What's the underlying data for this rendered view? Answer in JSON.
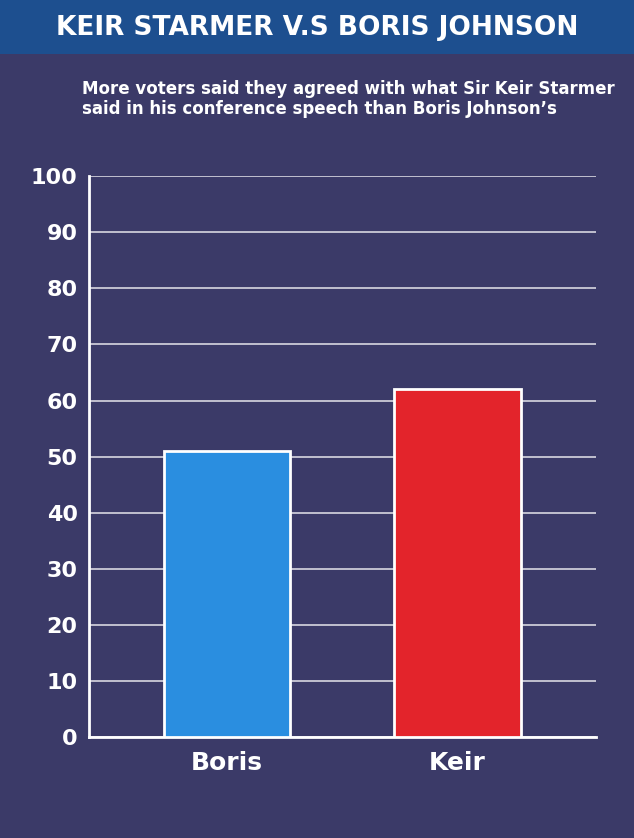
{
  "chart_data": {
    "type": "bar",
    "title": "KEIR STARMER V.S BORIS JOHNSON",
    "subtitle": "More voters said they agreed with what Sir Keir Starmer said in his conference speech than Boris Johnson’s",
    "categories": [
      "Boris",
      "Keir"
    ],
    "values": [
      51,
      62
    ],
    "colors": [
      "#2a8ee0",
      "#e3242b"
    ],
    "ylim": [
      0,
      100
    ],
    "yticks": [
      0,
      10,
      20,
      30,
      40,
      50,
      60,
      70,
      80,
      90,
      100
    ],
    "grid": true
  }
}
